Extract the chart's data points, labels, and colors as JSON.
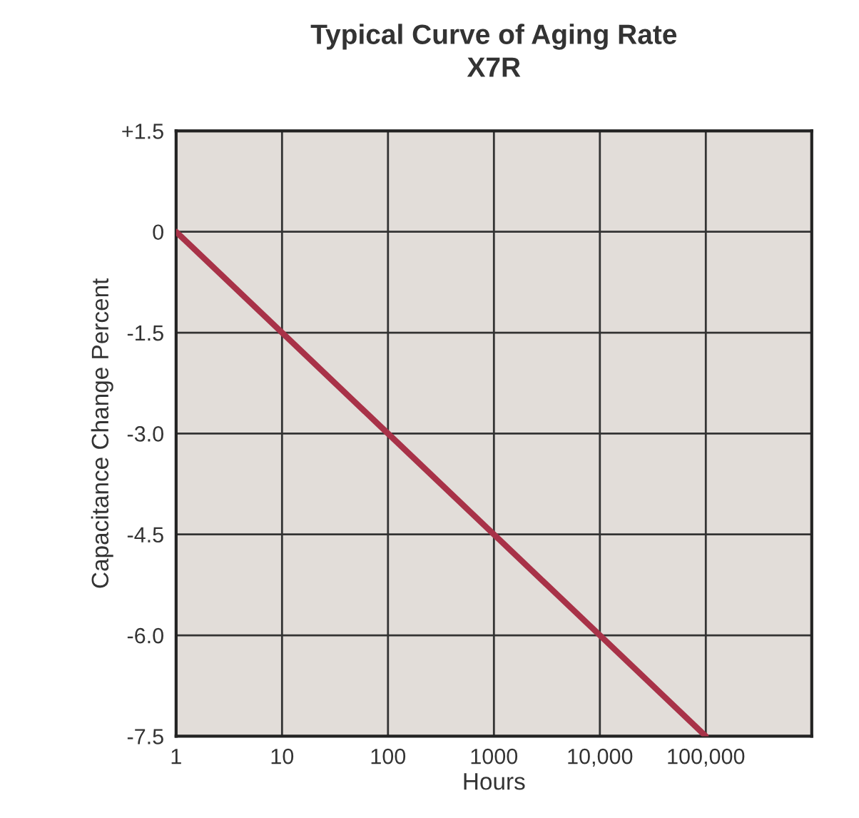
{
  "chart_data": {
    "type": "line",
    "title": "Typical Curve of Aging Rate",
    "subtitle": "X7R",
    "xlabel": "Hours",
    "ylabel": "Capacitance Change Percent",
    "x": [
      1,
      10,
      100,
      1000,
      10000,
      100000
    ],
    "series": [
      {
        "color": "#a83248",
        "values": [
          0,
          -1.5,
          -3.0,
          -4.5,
          -6.0,
          -7.5
        ]
      }
    ],
    "log": "x",
    "xlim": [
      1,
      1000000
    ],
    "ylim": [
      -7.5,
      1.5
    ],
    "xticks": [
      1,
      10,
      100,
      1000,
      {
        "value": 10000,
        "label": "10,000"
      },
      {
        "value": 100000,
        "label": "100,000"
      }
    ],
    "yticks": [
      {
        "value": 1.5,
        "label": "+1.5"
      },
      0,
      {
        "value": -1.5,
        "label": "-1.5"
      },
      {
        "value": -3.0,
        "label": "-3.0"
      },
      {
        "value": -4.5,
        "label": "-4.5"
      },
      {
        "value": -6.0,
        "label": "-6.0"
      },
      {
        "value": -7.5,
        "label": "-7.5"
      }
    ],
    "grid": true,
    "marker": "none",
    "line_style": "solid"
  }
}
